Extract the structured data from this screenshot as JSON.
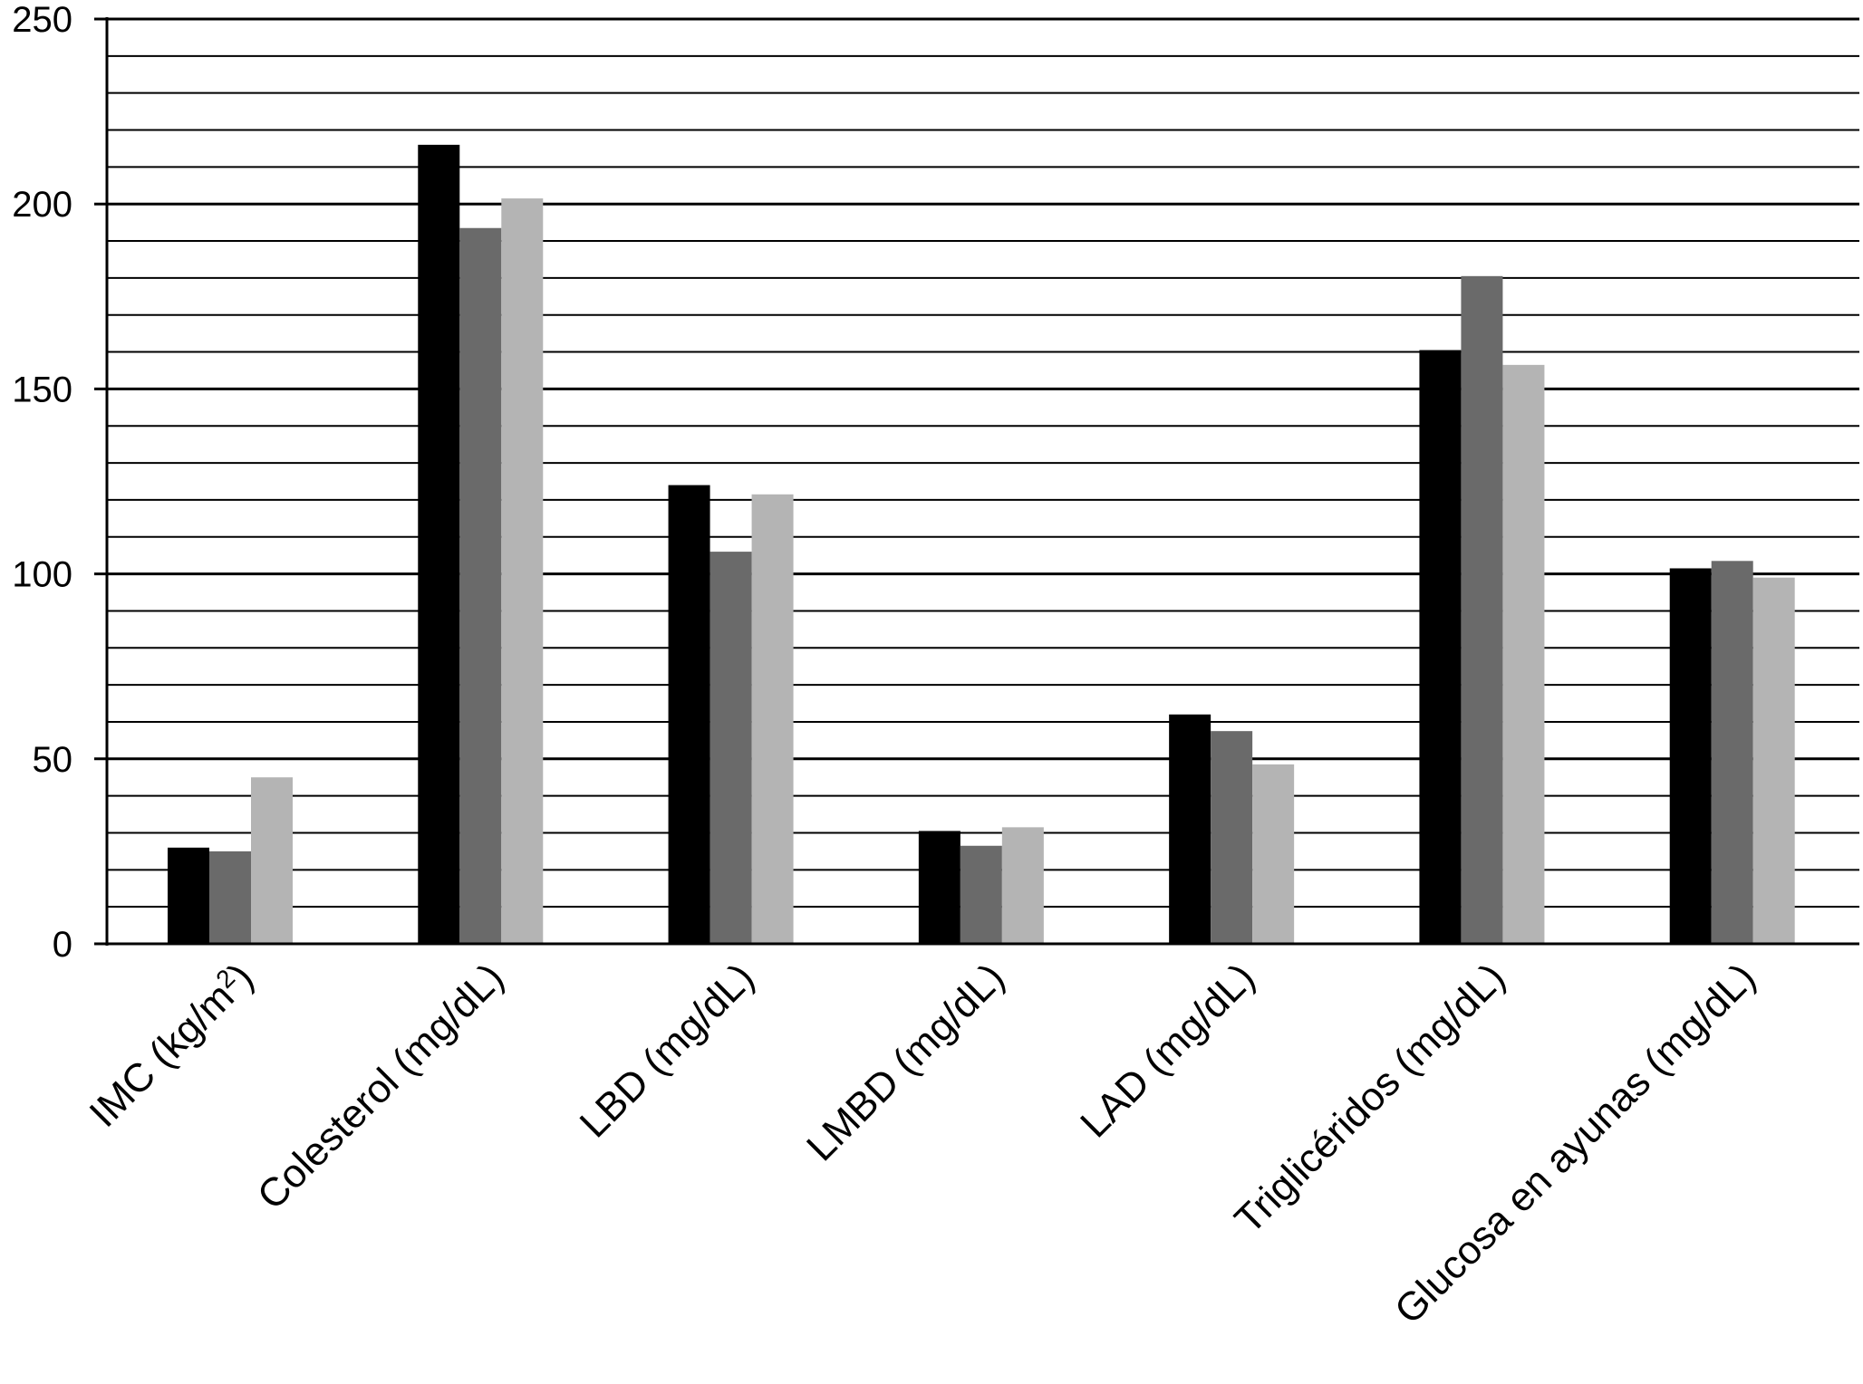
{
  "chart_data": {
    "type": "bar",
    "title": "",
    "xlabel": "",
    "ylabel": "",
    "ylim": [
      0,
      250
    ],
    "y_ticks": [
      0,
      50,
      100,
      150,
      200,
      250
    ],
    "minor_grid_step": 10,
    "grid": true,
    "legend": "none",
    "categories": [
      {
        "base": "IMC (kg/m",
        "sup": "2",
        "tail": ")"
      },
      {
        "base": "Colesterol (mg/dL)",
        "sup": "",
        "tail": ""
      },
      {
        "base": "LBD (mg/dL)",
        "sup": "",
        "tail": ""
      },
      {
        "base": "LMBD (mg/dL)",
        "sup": "",
        "tail": ""
      },
      {
        "base": "LAD (mg/dL)",
        "sup": "",
        "tail": ""
      },
      {
        "base": "Triglicéridos (mg/dL)",
        "sup": "",
        "tail": ""
      },
      {
        "base": "Glucosa en ayunas (mg/dL)",
        "sup": "",
        "tail": ""
      }
    ],
    "series": [
      {
        "color": "#000000",
        "values": [
          26,
          216,
          124,
          30.5,
          62,
          160.5,
          101.5
        ]
      },
      {
        "color": "#6a6a6a",
        "values": [
          25,
          193.5,
          106,
          26.5,
          57.5,
          180.5,
          103.5
        ]
      },
      {
        "color": "#b4b4b4",
        "values": [
          45,
          201.5,
          121.5,
          31.5,
          48.5,
          156.5,
          99
        ]
      }
    ]
  }
}
